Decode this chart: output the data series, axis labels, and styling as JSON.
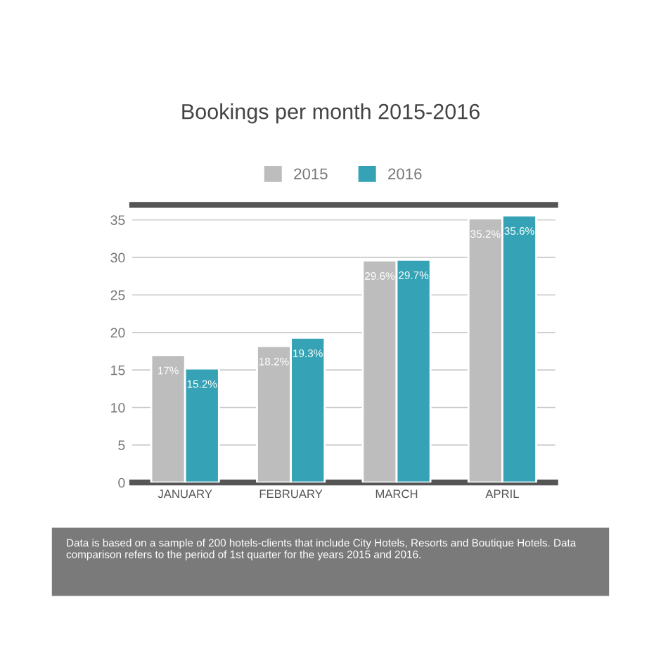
{
  "chart_data": {
    "type": "bar",
    "title": "Bookings per month 2015-2016",
    "categories": [
      "JANUARY",
      "FEBRUARY",
      "MARCH",
      "APRIL"
    ],
    "series": [
      {
        "name": "2015",
        "color": "#bdbdbd",
        "values": [
          17,
          18.2,
          29.6,
          35.2
        ],
        "value_labels": [
          "17%",
          "18.2%",
          "29.6%",
          "35.2%"
        ]
      },
      {
        "name": "2016",
        "color": "#35a3b5",
        "values": [
          15.2,
          19.3,
          29.7,
          35.6
        ],
        "value_labels": [
          "15.2%",
          "19.3%",
          "29.7%",
          "35.6%"
        ]
      }
    ],
    "ylim": [
      0,
      37
    ],
    "yticks": [
      0,
      5,
      10,
      15,
      20,
      25,
      30,
      35
    ],
    "grid": "y",
    "legend": "top",
    "annotations": [
      "Data is based on a sample of 200 hotels-clients that include City Hotels, Resorts and Boutique Hotels. Data comparison refers to the period of 1st quarter for the years 2015 and 2016."
    ]
  }
}
